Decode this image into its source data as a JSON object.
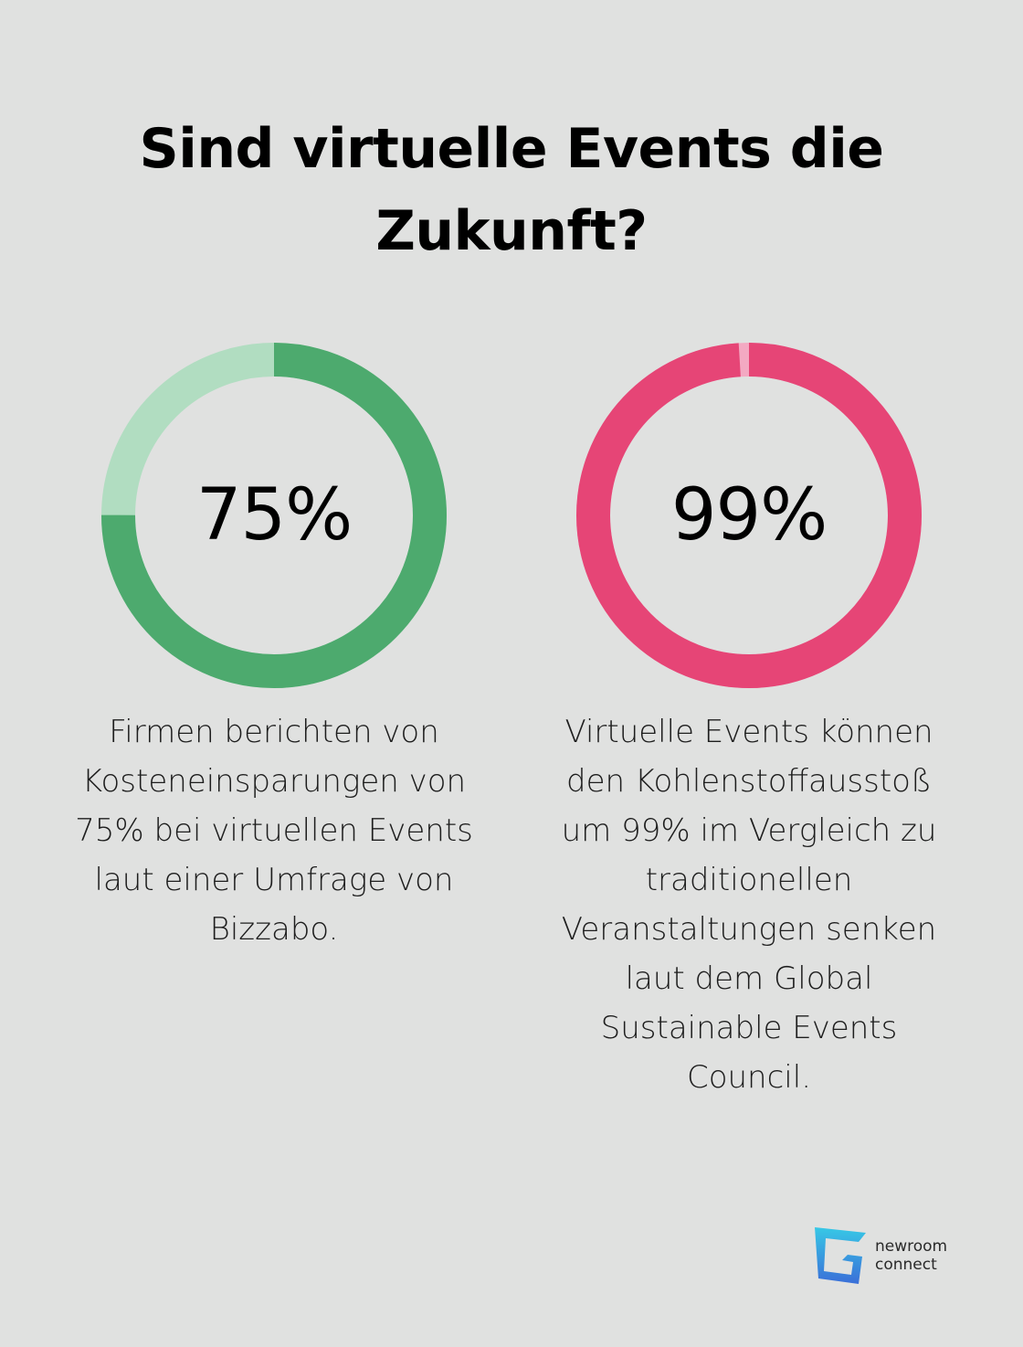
{
  "title": "Sind virtuelle Events die Zukunft?",
  "chart_data": [
    {
      "type": "pie",
      "variant": "donut",
      "value": 75,
      "label": "75%",
      "caption": "Firmen berichten von Kosteneinsparungen von 75% bei virtuellen Events laut einer Umfrage von Bizzabo.",
      "color": "#4daa6e",
      "track_color": "#b1ddc1"
    },
    {
      "type": "pie",
      "variant": "donut",
      "value": 99,
      "label": "99%",
      "caption": "Virtuelle Events können den Kohlenstoffausstoß um 99% im Vergleich zu traditionellen Veranstaltungen senken laut dem Global Sustainable Events Council.",
      "color": "#e64576",
      "track_color": "#f3a9c2"
    }
  ],
  "logo": {
    "line1": "newroom",
    "line2": "connect",
    "icon": "newroom-connect-logo-mark",
    "colors": [
      "#37c8e6",
      "#3a6fd8"
    ]
  }
}
